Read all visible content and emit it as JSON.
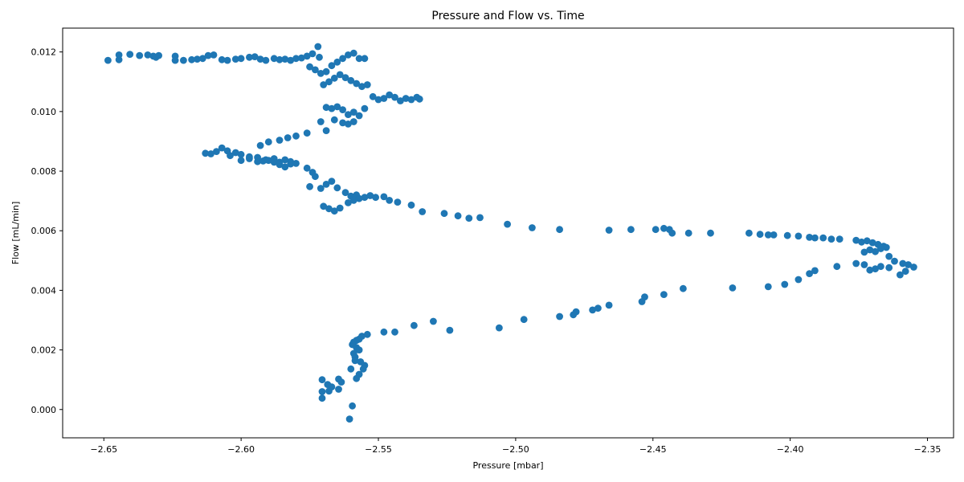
{
  "chart_data": {
    "type": "scatter",
    "title": "Pressure and Flow vs. Time",
    "xlabel": "Pressure [mbar]",
    "ylabel": "Flow [mL/min]",
    "xlim": [
      -2.665,
      -2.3405
    ],
    "ylim": [
      -0.00095,
      0.0128
    ],
    "xticks": [
      -2.65,
      -2.6,
      -2.55,
      -2.5,
      -2.45,
      -2.4,
      -2.35
    ],
    "xtick_labels": [
      "−2.65",
      "−2.60",
      "−2.55",
      "−2.50",
      "−2.45",
      "−2.40",
      "−2.35"
    ],
    "yticks": [
      0.0,
      0.002,
      0.004,
      0.006,
      0.008,
      0.01,
      0.012
    ],
    "ytick_labels": [
      "0.000",
      "0.002",
      "0.004",
      "0.006",
      "0.008",
      "0.010",
      "0.012"
    ],
    "grid": false,
    "legend": "none",
    "marker_color": "#1f77b4",
    "series": [
      {
        "x": [
          -2.6485,
          -2.6445,
          -2.6445,
          -2.6405,
          -2.637,
          -2.634,
          -2.632,
          -2.631,
          -2.63,
          -2.624,
          -2.624,
          -2.621,
          -2.618,
          -2.616,
          -2.614,
          -2.612,
          -2.61,
          -2.607,
          -2.605,
          -2.602,
          -2.6,
          -2.597,
          -2.595,
          -2.593,
          -2.591,
          -2.588,
          -2.586,
          -2.584,
          -2.582,
          -2.58,
          -2.578,
          -2.576,
          -2.574,
          -2.572,
          -2.5715,
          -2.575,
          -2.573,
          -2.571,
          -2.569,
          -2.567,
          -2.565,
          -2.563,
          -2.561,
          -2.559,
          -2.557,
          -2.555,
          -2.57,
          -2.568,
          -2.566,
          -2.564,
          -2.562,
          -2.56,
          -2.558,
          -2.556,
          -2.554,
          -2.552,
          -2.55,
          -2.548,
          -2.546,
          -2.544,
          -2.542,
          -2.54,
          -2.538,
          -2.536,
          -2.535,
          -2.569,
          -2.567,
          -2.565,
          -2.563,
          -2.561,
          -2.559,
          -2.557,
          -2.555,
          -2.566,
          -2.563,
          -2.561,
          -2.559,
          -2.571,
          -2.569,
          -2.576,
          -2.58,
          -2.583,
          -2.586,
          -2.59,
          -2.593,
          -2.582,
          -2.584,
          -2.586,
          -2.588,
          -2.591,
          -2.594,
          -2.597,
          -2.6,
          -2.602,
          -2.604,
          -2.605,
          -2.607,
          -2.609,
          -2.611,
          -2.613,
          -2.6,
          -2.597,
          -2.594,
          -2.592,
          -2.59,
          -2.588,
          -2.586,
          -2.584,
          -2.582,
          -2.58,
          -2.576,
          -2.574,
          -2.573,
          -2.575,
          -2.571,
          -2.569,
          -2.567,
          -2.565,
          -2.562,
          -2.56,
          -2.558,
          -2.57,
          -2.568,
          -2.566,
          -2.564,
          -2.561,
          -2.559,
          -2.557,
          -2.555,
          -2.553,
          -2.551,
          -2.548,
          -2.546,
          -2.543,
          -2.538,
          -2.534,
          -2.526,
          -2.521,
          -2.517,
          -2.513,
          -2.503,
          -2.494,
          -2.484,
          -2.466,
          -2.458,
          -2.449,
          -2.446,
          -2.444,
          -2.443,
          -2.437,
          -2.429,
          -2.415,
          -2.411,
          -2.408,
          -2.406,
          -2.401,
          -2.397,
          -2.393,
          -2.391,
          -2.388,
          -2.385,
          -2.382,
          -2.376,
          -2.374,
          -2.372,
          -2.37,
          -2.368,
          -2.366,
          -2.365,
          -2.367,
          -2.369,
          -2.371,
          -2.373,
          -2.364,
          -2.362,
          -2.359,
          -2.357,
          -2.355,
          -2.358,
          -2.36,
          -2.364,
          -2.367,
          -2.369,
          -2.371,
          -2.373,
          -2.376,
          -2.383,
          -2.391,
          -2.393,
          -2.397,
          -2.402,
          -2.408,
          -2.421,
          -2.439,
          -2.446,
          -2.453,
          -2.454,
          -2.466,
          -2.47,
          -2.472,
          -2.478,
          -2.479,
          -2.484,
          -2.497,
          -2.506,
          -2.524,
          -2.53,
          -2.537,
          -2.544,
          -2.548,
          -2.554,
          -2.556,
          -2.557,
          -2.558,
          -2.559,
          -2.5595,
          -2.558,
          -2.557,
          -2.5585,
          -2.559,
          -2.5565,
          -2.555,
          -2.5555,
          -2.557,
          -2.558,
          -2.5595,
          -2.5605,
          -2.5635,
          -2.567,
          -2.5705,
          -2.5705,
          -2.5705,
          -2.5685,
          -2.568,
          -2.5645,
          -2.5645,
          -2.56,
          -2.5585
        ],
        "y": [
          0.01172,
          0.01174,
          0.0119,
          0.01192,
          0.01188,
          0.0119,
          0.01186,
          0.01182,
          0.01188,
          0.01186,
          0.01172,
          0.01172,
          0.01174,
          0.01176,
          0.01178,
          0.01188,
          0.0119,
          0.01174,
          0.01172,
          0.01176,
          0.01178,
          0.01182,
          0.01184,
          0.01176,
          0.01172,
          0.01178,
          0.01174,
          0.01176,
          0.01172,
          0.01178,
          0.0118,
          0.01186,
          0.01194,
          0.01218,
          0.01182,
          0.0115,
          0.0114,
          0.01128,
          0.01134,
          0.01154,
          0.01166,
          0.01178,
          0.0119,
          0.01196,
          0.01178,
          0.01178,
          0.0109,
          0.011,
          0.01112,
          0.01124,
          0.01114,
          0.01104,
          0.01094,
          0.01084,
          0.0109,
          0.0105,
          0.0104,
          0.01044,
          0.01056,
          0.01048,
          0.01036,
          0.01044,
          0.0104,
          0.01048,
          0.01042,
          0.01014,
          0.0101,
          0.01016,
          0.01006,
          0.0099,
          0.00998,
          0.00986,
          0.0101,
          0.00972,
          0.00962,
          0.00958,
          0.00966,
          0.00966,
          0.00936,
          0.00928,
          0.00918,
          0.00912,
          0.00904,
          0.00898,
          0.00886,
          0.00832,
          0.00838,
          0.0083,
          0.00842,
          0.00838,
          0.00832,
          0.00848,
          0.00856,
          0.00862,
          0.00852,
          0.00868,
          0.00878,
          0.00866,
          0.00858,
          0.0086,
          0.00836,
          0.00842,
          0.00846,
          0.00834,
          0.00836,
          0.0083,
          0.00822,
          0.00814,
          0.00824,
          0.00826,
          0.0081,
          0.00796,
          0.00782,
          0.00748,
          0.00742,
          0.00756,
          0.00766,
          0.00744,
          0.00728,
          0.00716,
          0.0072,
          0.00682,
          0.00674,
          0.00666,
          0.00676,
          0.00694,
          0.00702,
          0.00708,
          0.00712,
          0.00718,
          0.00712,
          0.00714,
          0.00702,
          0.00696,
          0.00686,
          0.00664,
          0.00658,
          0.0065,
          0.00642,
          0.00644,
          0.00622,
          0.0061,
          0.00604,
          0.00602,
          0.00604,
          0.00604,
          0.00608,
          0.00604,
          0.00592,
          0.00592,
          0.00592,
          0.00592,
          0.00588,
          0.00586,
          0.00586,
          0.00584,
          0.00582,
          0.00578,
          0.00576,
          0.00576,
          0.00572,
          0.00572,
          0.00568,
          0.00562,
          0.00566,
          0.0056,
          0.00554,
          0.00548,
          0.00544,
          0.0054,
          0.0053,
          0.00536,
          0.00528,
          0.00514,
          0.00498,
          0.0049,
          0.00486,
          0.00478,
          0.00464,
          0.00452,
          0.00476,
          0.0048,
          0.00472,
          0.00468,
          0.00486,
          0.0049,
          0.0048,
          0.00466,
          0.00456,
          0.00436,
          0.0042,
          0.00412,
          0.00408,
          0.00406,
          0.00386,
          0.00378,
          0.00362,
          0.0035,
          0.0034,
          0.00334,
          0.00328,
          0.00318,
          0.00312,
          0.00302,
          0.00274,
          0.00266,
          0.00296,
          0.00282,
          0.0026,
          0.0026,
          0.00252,
          0.00246,
          0.00236,
          0.00232,
          0.00226,
          0.00218,
          0.00208,
          0.002,
          0.00176,
          0.00188,
          0.0016,
          0.00148,
          0.00136,
          0.00118,
          0.00104,
          0.00012,
          -0.00032,
          0.00092,
          0.00076,
          0.0006,
          0.00038,
          0.001,
          0.00084,
          0.00062,
          0.00068,
          0.00102,
          0.00136,
          0.00164
        ]
      }
    ]
  }
}
